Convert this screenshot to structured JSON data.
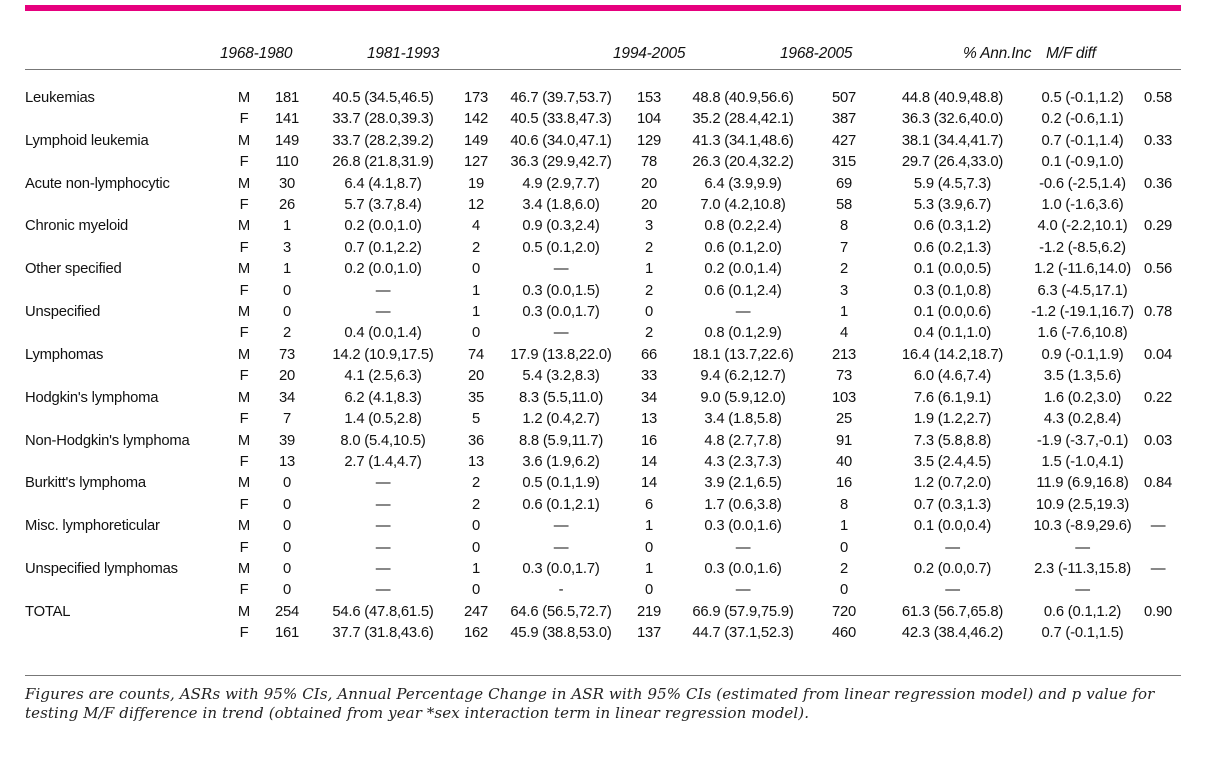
{
  "accent_color": "#e6007e",
  "header": {
    "period1": "1968-1980",
    "period2": "1981-1993",
    "period3": "1994-2005",
    "period4": "1968-2005",
    "ann_inc": "% Ann.Inc",
    "mf_diff": "M/F diff"
  },
  "table": {
    "col_names": [
      "diagnosis-label",
      "sex-label",
      "count-1968-1980",
      "asr-1968-1980",
      "count-1981-1993",
      "asr-1981-1993",
      "count-1994-2005",
      "asr-1994-2005",
      "count-1968-2005",
      "asr-1968-2005",
      "annual-increase",
      "mf-diff-pvalue"
    ],
    "rows": [
      [
        "Leukemias",
        "M",
        "181",
        "40.5 (34.5,46.5)",
        "173",
        "46.7 (39.7,53.7)",
        "153",
        "48.8 (40.9,56.6)",
        "507",
        "44.8 (40.9,48.8)",
        "0.5 (-0.1,1.2)",
        "0.58"
      ],
      [
        "",
        "F",
        "141",
        "33.7 (28.0,39.3)",
        "142",
        "40.5 (33.8,47.3)",
        "104",
        "35.2 (28.4,42.1)",
        "387",
        "36.3 (32.6,40.0)",
        "0.2 (-0.6,1.1)",
        ""
      ],
      [
        "Lymphoid leukemia",
        "M",
        "149",
        "33.7 (28.2,39.2)",
        "149",
        "40.6 (34.0,47.1)",
        "129",
        "41.3 (34.1,48.6)",
        "427",
        "38.1 (34.4,41.7)",
        "0.7 (-0.1,1.4)",
        "0.33"
      ],
      [
        "",
        "F",
        "110",
        "26.8 (21.8,31.9)",
        "127",
        "36.3 (29.9,42.7)",
        "78",
        "26.3 (20.4,32.2)",
        "315",
        "29.7 (26.4,33.0)",
        "0.1 (-0.9,1.0)",
        ""
      ],
      [
        "Acute non-lymphocytic",
        "M",
        "30",
        "6.4 (4.1,8.7)",
        "19",
        "4.9 (2.9,7.7)",
        "20",
        "6.4 (3.9,9.9)",
        "69",
        "5.9 (4.5,7.3)",
        "-0.6 (-2.5,1.4)",
        "0.36"
      ],
      [
        "",
        "F",
        "26",
        "5.7 (3.7,8.4)",
        "12",
        "3.4 (1.8,6.0)",
        "20",
        "7.0 (4.2,10.8)",
        "58",
        "5.3 (3.9,6.7)",
        "1.0 (-1.6,3.6)",
        ""
      ],
      [
        "Chronic myeloid",
        "M",
        "1",
        "0.2 (0.0,1.0)",
        "4",
        "0.9 (0.3,2.4)",
        "3",
        "0.8 (0.2,2.4)",
        "8",
        "0.6 (0.3,1.2)",
        "4.0 (-2.2,10.1)",
        "0.29"
      ],
      [
        "",
        "F",
        "3",
        "0.7 (0.1,2.2)",
        "2",
        "0.5 (0.1,2.0)",
        "2",
        "0.6 (0.1,2.0)",
        "7",
        "0.6 (0.2,1.3)",
        "-1.2 (-8.5,6.2)",
        ""
      ],
      [
        "Other specified",
        "M",
        "1",
        "0.2 (0.0,1.0)",
        "0",
        "—",
        "1",
        "0.2 (0.0,1.4)",
        "2",
        "0.1 (0.0,0.5)",
        "1.2 (-11.6,14.0)",
        "0.56"
      ],
      [
        "",
        "F",
        "0",
        "—",
        "1",
        "0.3 (0.0,1.5)",
        "2",
        "0.6 (0.1,2.4)",
        "3",
        "0.3 (0.1,0.8)",
        "6.3 (-4.5,17.1)",
        ""
      ],
      [
        "Unspecified",
        "M",
        "0",
        "—",
        "1",
        "0.3 (0.0,1.7)",
        "0",
        "—",
        "1",
        "0.1 (0.0,0.6)",
        "-1.2 (-19.1,16.7)",
        "0.78"
      ],
      [
        "",
        "F",
        "2",
        "0.4 (0.0,1.4)",
        "0",
        "—",
        "2",
        "0.8 (0.1,2.9)",
        "4",
        "0.4 (0.1,1.0)",
        "1.6 (-7.6,10.8)",
        ""
      ],
      [
        "Lymphomas",
        "M",
        "73",
        "14.2 (10.9,17.5)",
        "74",
        "17.9 (13.8,22.0)",
        "66",
        "18.1 (13.7,22.6)",
        "213",
        "16.4 (14.2,18.7)",
        "0.9 (-0.1,1.9)",
        "0.04"
      ],
      [
        "",
        "F",
        "20",
        "4.1 (2.5,6.3)",
        "20",
        "5.4 (3.2,8.3)",
        "33",
        "9.4 (6.2,12.7)",
        "73",
        "6.0 (4.6,7.4)",
        "3.5 (1.3,5.6)",
        ""
      ],
      [
        "Hodgkin's lymphoma",
        "M",
        "34",
        "6.2 (4.1,8.3)",
        "35",
        "8.3 (5.5,11.0)",
        "34",
        "9.0 (5.9,12.0)",
        "103",
        "7.6 (6.1,9.1)",
        "1.6 (0.2,3.0)",
        "0.22"
      ],
      [
        "",
        "F",
        "7",
        "1.4 (0.5,2.8)",
        "5",
        "1.2 (0.4,2.7)",
        "13",
        "3.4 (1.8,5.8)",
        "25",
        "1.9 (1.2,2.7)",
        "4.3 (0.2,8.4)",
        ""
      ],
      [
        "Non-Hodgkin's lymphoma",
        "M",
        "39",
        "8.0 (5.4,10.5)",
        "36",
        "8.8 (5.9,11.7)",
        "16",
        "4.8 (2.7,7.8)",
        "91",
        "7.3 (5.8,8.8)",
        "-1.9 (-3.7,-0.1)",
        "0.03"
      ],
      [
        "",
        "F",
        "13",
        "2.7 (1.4,4.7)",
        "13",
        "3.6 (1.9,6.2)",
        "14",
        "4.3 (2.3,7.3)",
        "40",
        "3.5 (2.4,4.5)",
        "1.5 (-1.0,4.1)",
        ""
      ],
      [
        "Burkitt's lymphoma",
        "M",
        "0",
        "—",
        "2",
        "0.5 (0.1,1.9)",
        "14",
        "3.9 (2.1,6.5)",
        "16",
        "1.2 (0.7,2.0)",
        "11.9 (6.9,16.8)",
        "0.84"
      ],
      [
        "",
        "F",
        "0",
        "—",
        "2",
        "0.6 (0.1,2.1)",
        "6",
        "1.7 (0.6,3.8)",
        "8",
        "0.7 (0.3,1.3)",
        "10.9 (2.5,19.3)",
        ""
      ],
      [
        "Misc. lymphoreticular",
        "M",
        "0",
        "—",
        "0",
        "—",
        "1",
        "0.3 (0.0,1.6)",
        "1",
        "0.1 (0.0,0.4)",
        "10.3 (-8.9,29.6)",
        "—"
      ],
      [
        "",
        "F",
        "0",
        "—",
        "0",
        "—",
        "0",
        "—",
        "0",
        "—",
        "—",
        ""
      ],
      [
        "Unspecified lymphomas",
        "M",
        "0",
        "—",
        "1",
        "0.3 (0.0,1.7)",
        "1",
        "0.3 (0.0,1.6)",
        "2",
        "0.2 (0.0,0.7)",
        "2.3 (-11.3,15.8)",
        "—"
      ],
      [
        "",
        "F",
        "0",
        "—",
        "0",
        "-",
        "0",
        "—",
        "0",
        "—",
        "—",
        ""
      ],
      [
        "TOTAL",
        "M",
        "254",
        "54.6 (47.8,61.5)",
        "247",
        "64.6 (56.5,72.7)",
        "219",
        "66.9 (57.9,75.9)",
        "720",
        "61.3 (56.7,65.8)",
        "0.6 (0.1,1.2)",
        "0.90"
      ],
      [
        "",
        "F",
        "161",
        "37.7 (31.8,43.6)",
        "162",
        "45.9 (38.8,53.0)",
        "137",
        "44.7 (37.1,52.3)",
        "460",
        "42.3 (38.4,46.2)",
        "0.7 (-0.1,1.5)",
        ""
      ]
    ]
  },
  "footnote": "Figures are counts, ASRs with 95% CIs, Annual Percentage Change in ASR with 95% CIs (estimated from linear regression model) and p value for testing M/F difference in trend (obtained from year *sex interaction term in linear regression model)."
}
